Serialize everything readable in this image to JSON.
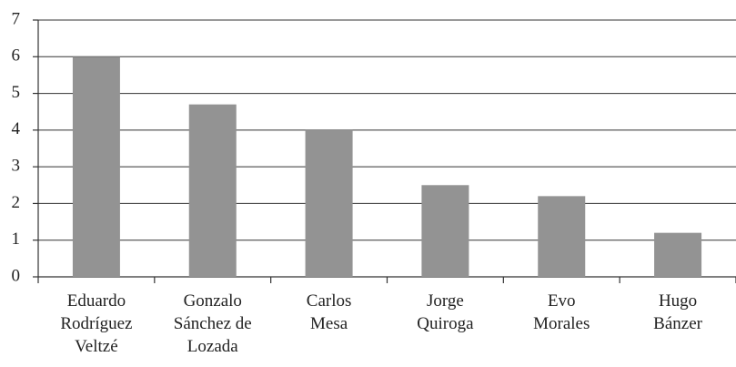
{
  "chart_data": {
    "type": "bar",
    "categories": [
      "Eduardo\nRodríguez\nVeltzé",
      "Gonzalo\nSánchez de\nLozada",
      "Carlos\nMesa",
      "Jorge\nQuiroga",
      "Evo\nMorales",
      "Hugo\nBánzer"
    ],
    "values": [
      6.0,
      4.7,
      4.0,
      2.5,
      2.2,
      1.2
    ],
    "color": "#939393",
    "ylim": [
      0,
      7
    ],
    "yticks": [
      0,
      1,
      2,
      3,
      4,
      5,
      6,
      7
    ],
    "grid": true
  }
}
